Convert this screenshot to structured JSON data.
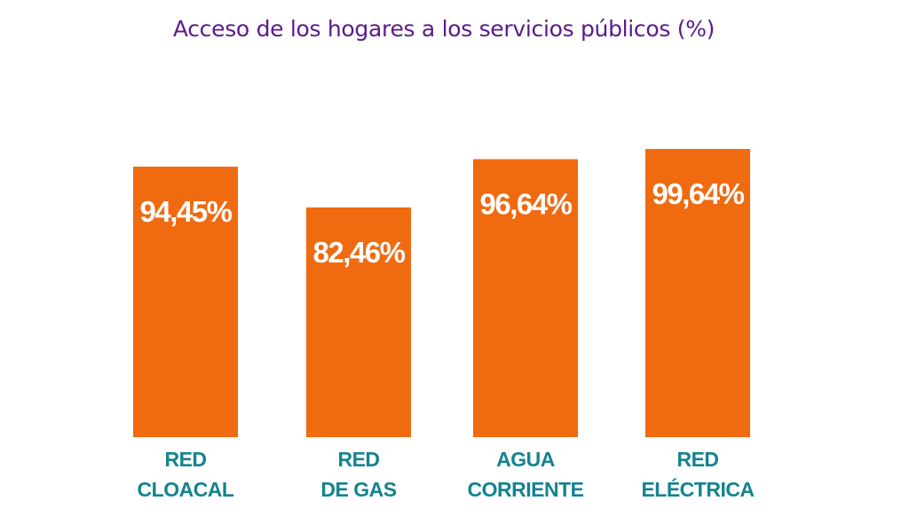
{
  "chart_data": {
    "type": "bar",
    "title": "Acceso de los hogares a los servicios públicos (%)",
    "xlabel": "",
    "ylabel": "",
    "grid": false,
    "legend": "none",
    "categories": [
      [
        "RED",
        "CLOACAL"
      ],
      [
        "RED",
        "DE GAS"
      ],
      [
        "AGUA",
        "CORRIENTE"
      ],
      [
        "RED",
        "ELÉCTRICA"
      ]
    ],
    "values": [
      94.45,
      82.46,
      96.64,
      99.64
    ],
    "value_labels": [
      "94,45%",
      "82,46%",
      "96,64%",
      "99,64%"
    ],
    "ylim": [
      0,
      100
    ],
    "colors": {
      "bar": "#f06a10",
      "value_label": "#ffffff",
      "category_label": "#14838f",
      "title": "#5b1a8c"
    }
  }
}
